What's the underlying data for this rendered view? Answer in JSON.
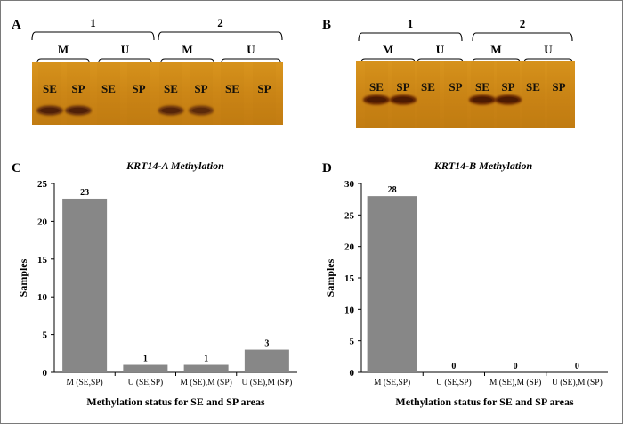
{
  "panels": {
    "A": "A",
    "B": "B",
    "C": "C",
    "D": "D"
  },
  "gel_a": {
    "groups": [
      "1",
      "2"
    ],
    "conditions": [
      "M",
      "U",
      "M",
      "U"
    ],
    "lanes": [
      "SE",
      "SP",
      "SE",
      "SP",
      "SE",
      "SP",
      "SE",
      "SP"
    ],
    "band_strength": [
      0.95,
      0.95,
      0,
      0,
      0.85,
      0.75,
      0,
      0
    ],
    "gel_color": "#cf8a18",
    "band_color": "#5a2608"
  },
  "gel_b": {
    "groups": [
      "1",
      "2"
    ],
    "conditions": [
      "M",
      "U",
      "M",
      "U"
    ],
    "lanes": [
      "SE",
      "SP",
      "SE",
      "SP",
      "SE",
      "SP",
      "SE",
      "SP"
    ],
    "band_strength": [
      1,
      1,
      0,
      0,
      1,
      1,
      0,
      0
    ],
    "gel_color": "#cf8a18",
    "band_color": "#5a1a06"
  },
  "chart_data": [
    {
      "type": "bar",
      "title": "KRT14-A Methylation",
      "categories": [
        "M (SE,SP)",
        "U (SE,SP)",
        "M (SE),M (SP)",
        "U (SE),M (SP)"
      ],
      "values": [
        23,
        1,
        1,
        3
      ],
      "xlabel": "Methylation status for SE and SP areas",
      "ylabel": "Samples",
      "ylim": [
        0,
        25
      ],
      "yticks": [
        0,
        5,
        10,
        15,
        20,
        25
      ],
      "bar_color": "#878787",
      "grid": false
    },
    {
      "type": "bar",
      "title": "KRT14-B Methylation",
      "categories": [
        "M (SE,SP)",
        "U (SE,SP)",
        "M (SE),M (SP)",
        "U (SE),M (SP)"
      ],
      "values": [
        28,
        0,
        0,
        0
      ],
      "xlabel": "Methylation status for SE and SP areas",
      "ylabel": "Samples",
      "ylim": [
        0,
        30
      ],
      "yticks": [
        0,
        5,
        10,
        15,
        20,
        25,
        30
      ],
      "bar_color": "#878787",
      "grid": false
    }
  ]
}
